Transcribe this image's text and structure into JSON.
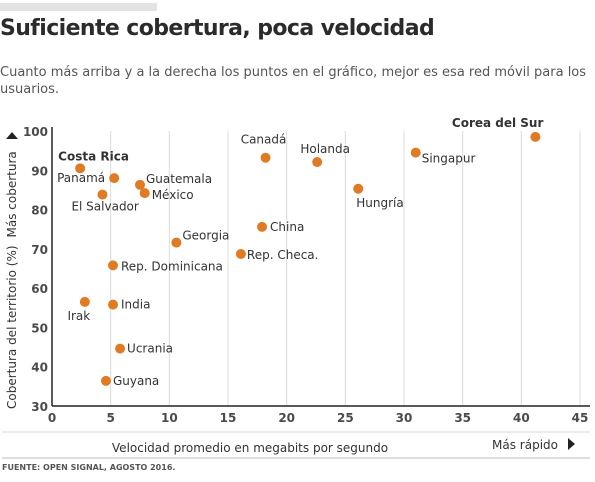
{
  "header": {
    "title": "Suficiente cobertura, poca velocidad",
    "subtitle": "Cuanto más arriba y a la derecha los puntos en el gráfico, mejor es esa red móvil para los usuarios."
  },
  "footer": {
    "source": "FUENTE: OPEN SIGNAL, AGOSTO 2016."
  },
  "chart_data": {
    "type": "scatter",
    "xlabel": "Velocidad promedio en megabits por segundo",
    "ylabel": "Cobertura del territorio (%)",
    "x_direction_label": "Más rápido",
    "y_direction_label": "Más cobertura",
    "xlim": [
      0,
      45
    ],
    "ylim": [
      30,
      100
    ],
    "x_ticks": [
      0,
      5,
      10,
      15,
      20,
      25,
      30,
      35,
      40,
      45
    ],
    "y_ticks": [
      30,
      40,
      50,
      60,
      70,
      80,
      90,
      100
    ],
    "grid": "vertical",
    "point_color": "#e07b24",
    "points": [
      {
        "label": "Costa Rica",
        "x": 2.4,
        "y": 90.5,
        "highlight": true
      },
      {
        "label": "Panamá",
        "x": 5.3,
        "y": 88.0
      },
      {
        "label": "Guatemala",
        "x": 7.5,
        "y": 86.3
      },
      {
        "label": "México",
        "x": 7.9,
        "y": 84.2
      },
      {
        "label": "El Salvador",
        "x": 4.3,
        "y": 83.8
      },
      {
        "label": "Canadá",
        "x": 18.2,
        "y": 93.2
      },
      {
        "label": "Holanda",
        "x": 22.6,
        "y": 92.1
      },
      {
        "label": "Corea del Sur",
        "x": 41.2,
        "y": 98.5,
        "highlight": true
      },
      {
        "label": "Singapur",
        "x": 31.0,
        "y": 94.5
      },
      {
        "label": "Hungría",
        "x": 26.1,
        "y": 85.3
      },
      {
        "label": "China",
        "x": 17.9,
        "y": 75.6
      },
      {
        "label": "Georgia",
        "x": 10.6,
        "y": 71.6
      },
      {
        "label": "Rep. Checa.",
        "x": 16.1,
        "y": 68.7
      },
      {
        "label": "Rep. Dominicana",
        "x": 5.2,
        "y": 65.8
      },
      {
        "label": "Irak",
        "x": 2.8,
        "y": 56.5
      },
      {
        "label": "India",
        "x": 5.2,
        "y": 55.8
      },
      {
        "label": "Ucrania",
        "x": 5.8,
        "y": 44.6
      },
      {
        "label": "Guyana",
        "x": 4.6,
        "y": 36.4
      }
    ]
  }
}
